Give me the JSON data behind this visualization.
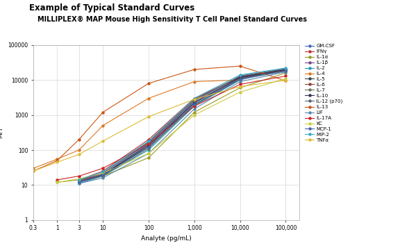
{
  "title1": "Example of Typical Standard Curves",
  "title2": "MILLIPLEX® MAP Mouse High Sensitivity T Cell Panel Standard Curves",
  "xlabel": "Analyte (pg/mL)",
  "ylabel": "MFI",
  "xlim": [
    0.3,
    200000
  ],
  "ylim": [
    1,
    100000
  ],
  "xticks": [
    0.3,
    1,
    3,
    10,
    100,
    1000,
    10000,
    100000
  ],
  "xtick_labels": [
    "0.3",
    "1",
    "3",
    "10",
    "100",
    "1,000",
    "10,000",
    "100,000"
  ],
  "yticks": [
    1,
    10,
    100,
    1000,
    10000,
    100000
  ],
  "ytick_labels": [
    "1",
    "10",
    "100",
    "1000",
    "10000",
    "100000"
  ],
  "series": [
    {
      "name": "GM-CSF",
      "color": "#4466bb",
      "x": [
        3,
        10,
        100,
        1000,
        10000,
        100000
      ],
      "y": [
        12,
        20,
        150,
        2500,
        13000,
        21000
      ]
    },
    {
      "name": "IFNγ",
      "color": "#bb3333",
      "x": [
        3,
        10,
        100,
        1000,
        10000,
        100000
      ],
      "y": [
        14,
        25,
        200,
        3000,
        12000,
        19000
      ]
    },
    {
      "name": "IL-1α",
      "color": "#999922",
      "x": [
        1,
        3,
        10,
        100,
        1000,
        10000,
        100000
      ],
      "y": [
        12,
        14,
        18,
        60,
        1200,
        6000,
        16000
      ]
    },
    {
      "name": "IL-1β",
      "color": "#774488",
      "x": [
        3,
        10,
        100,
        1000,
        10000,
        100000
      ],
      "y": [
        13,
        20,
        120,
        2000,
        11000,
        19000
      ]
    },
    {
      "name": "IL-2",
      "color": "#2299bb",
      "x": [
        3,
        10,
        100,
        1000,
        10000,
        100000
      ],
      "y": [
        11,
        18,
        100,
        1800,
        10000,
        21000
      ]
    },
    {
      "name": "IL-4",
      "color": "#dd7722",
      "x": [
        0.3,
        1,
        3,
        10,
        100,
        1000,
        10000
      ],
      "y": [
        30,
        55,
        100,
        500,
        3000,
        9000,
        10000
      ]
    },
    {
      "name": "IL-5",
      "color": "#334444",
      "x": [
        3,
        10,
        100,
        1000,
        10000,
        100000
      ],
      "y": [
        12,
        19,
        130,
        2200,
        11500,
        19500
      ]
    },
    {
      "name": "IL-6",
      "color": "#884433",
      "x": [
        3,
        10,
        100,
        1000,
        10000,
        100000
      ],
      "y": [
        13,
        22,
        170,
        2800,
        12500,
        20000
      ]
    },
    {
      "name": "IL-7",
      "color": "#667755",
      "x": [
        3,
        10,
        100,
        1000,
        10000,
        100000
      ],
      "y": [
        12,
        18,
        110,
        1900,
        10500,
        18000
      ]
    },
    {
      "name": "IL-10",
      "color": "#333355",
      "x": [
        3,
        10,
        100,
        1000,
        10000,
        100000
      ],
      "y": [
        12,
        20,
        140,
        2300,
        12000,
        19500
      ]
    },
    {
      "name": "IL-12 (p70)",
      "color": "#556677",
      "x": [
        3,
        10,
        100,
        1000,
        10000,
        100000
      ],
      "y": [
        14,
        22,
        160,
        2600,
        13000,
        21000
      ]
    },
    {
      "name": "IL-13",
      "color": "#cc5511",
      "x": [
        0.3,
        1,
        3,
        10,
        100,
        1000,
        10000,
        100000
      ],
      "y": [
        25,
        50,
        200,
        1200,
        8000,
        20000,
        25000,
        9500
      ]
    },
    {
      "name": "LIF",
      "color": "#5588aa",
      "x": [
        3,
        10,
        100,
        1000,
        10000,
        100000
      ],
      "y": [
        11,
        16,
        80,
        1500,
        9000,
        17000
      ]
    },
    {
      "name": "IL-17A",
      "color": "#cc2222",
      "x": [
        1,
        3,
        10,
        100,
        1000,
        10000,
        100000
      ],
      "y": [
        14,
        18,
        30,
        150,
        1800,
        7500,
        13000
      ]
    },
    {
      "name": "KC",
      "color": "#cccc44",
      "x": [
        1,
        3,
        10,
        100,
        1000,
        10000,
        100000
      ],
      "y": [
        12,
        15,
        22,
        80,
        1000,
        4500,
        11000
      ]
    },
    {
      "name": "MCP-1",
      "color": "#4466aa",
      "x": [
        3,
        10,
        100,
        1000,
        10000,
        100000
      ],
      "y": [
        12,
        19,
        120,
        2000,
        10500,
        18000
      ]
    },
    {
      "name": "MIP-2",
      "color": "#33aacc",
      "x": [
        3,
        10,
        100,
        1000,
        10000,
        100000
      ],
      "y": [
        14,
        24,
        180,
        3000,
        14000,
        22000
      ]
    },
    {
      "name": "TNFα",
      "color": "#ddbb33",
      "x": [
        0.3,
        1,
        3,
        10,
        100,
        1000,
        10000,
        100000
      ],
      "y": [
        25,
        45,
        75,
        180,
        900,
        2800,
        6500,
        9800
      ]
    }
  ],
  "bg_color": "#ffffff",
  "grid_color": "#cccccc",
  "title1_fontsize": 8.5,
  "title2_fontsize": 7.0,
  "axis_fontsize": 6.5,
  "tick_fontsize": 5.5,
  "legend_fontsize": 5.0,
  "linewidth": 0.8,
  "markersize": 2.2
}
